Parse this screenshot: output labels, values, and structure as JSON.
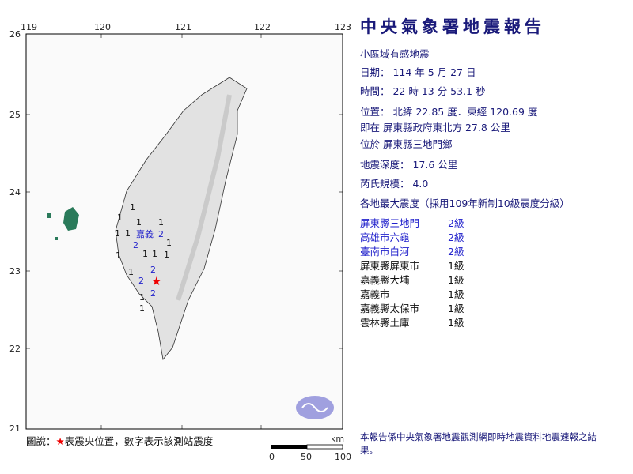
{
  "title": "中央氣象署地震報告",
  "subtitle": "小區域有感地震",
  "date": "日期： 114 年 5 月 27 日",
  "time": "時間： 22 時 13 分 53.1 秒",
  "location": "位置： 北緯 22.85 度．東經 120.69 度",
  "relative": "即在 屏東縣政府東北方 27.8 公里",
  "town": "位於 屏東縣三地門鄉",
  "depth": "地震深度： 17.6 公里",
  "magnitude": "芮氏規模： 4.0",
  "intensity_header": "各地最大震度（採用109年新制10級震度分級）",
  "stations": [
    {
      "name": "屏東縣三地門",
      "level": "2級",
      "color": "#2222cc"
    },
    {
      "name": "高雄市六龜",
      "level": "2級",
      "color": "#2222cc"
    },
    {
      "name": "臺南市白河",
      "level": "2級",
      "color": "#2222cc"
    },
    {
      "name": "屏東縣屏東市",
      "level": "1級",
      "color": "#111111"
    },
    {
      "name": "嘉義縣大埔",
      "level": "1級",
      "color": "#111111"
    },
    {
      "name": "嘉義市",
      "level": "1級",
      "color": "#111111"
    },
    {
      "name": "嘉義縣太保市",
      "level": "1級",
      "color": "#111111"
    },
    {
      "name": "雲林縣土庫",
      "level": "1級",
      "color": "#111111"
    }
  ],
  "map": {
    "lon_ticks": [
      "119",
      "120",
      "121",
      "122",
      "123"
    ],
    "lat_ticks": [
      "26",
      "25",
      "24",
      "23",
      "22",
      "21"
    ],
    "place_label": "嘉義",
    "scale_unit": "km",
    "scale_ticks": [
      "0",
      "50",
      "100"
    ],
    "markers": [
      "1",
      "1",
      "1",
      "1",
      "1",
      "1",
      "1",
      "1",
      "1",
      "1",
      "1",
      "1",
      "2",
      "2",
      "2",
      "2",
      "2",
      "1",
      "1"
    ]
  },
  "legend": {
    "prefix": "圖說：",
    "star": "★",
    "text": "表震央位置，數字表示該測站震度"
  },
  "note": "本報告係中央氣象署地震觀測網即時地震資料地震速報之結果。"
}
